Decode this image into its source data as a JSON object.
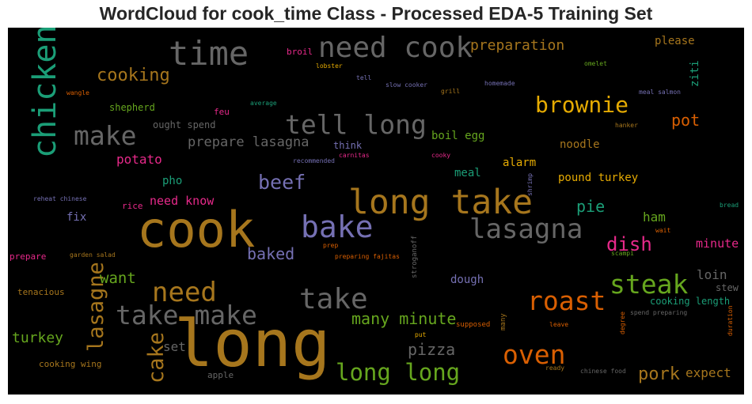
{
  "chart_data": {
    "type": "wordcloud",
    "title": "WordCloud for cook_time Class - Processed EDA-5 Training Set",
    "background": "#000000",
    "colormap": "Dark2",
    "words": [
      {
        "text": "long",
        "weight": 100,
        "color": "#a6761d"
      },
      {
        "text": "cook",
        "weight": 85,
        "color": "#a6761d"
      },
      {
        "text": "long take",
        "weight": 62,
        "color": "#a6761d"
      },
      {
        "text": "chicken",
        "weight": 60,
        "color": "#1b9e77"
      },
      {
        "text": "time",
        "weight": 58,
        "color": "#666666"
      },
      {
        "text": "bake",
        "weight": 52,
        "color": "#7570b3"
      },
      {
        "text": "need cook",
        "weight": 50,
        "color": "#666666"
      },
      {
        "text": "take",
        "weight": 50,
        "color": "#666666"
      },
      {
        "text": "lasagna",
        "weight": 47,
        "color": "#666666"
      },
      {
        "text": "need",
        "weight": 47,
        "color": "#a6761d"
      },
      {
        "text": "tell long",
        "weight": 46,
        "color": "#666666"
      },
      {
        "text": "take make",
        "weight": 45,
        "color": "#666666"
      },
      {
        "text": "steak",
        "weight": 45,
        "color": "#66a61e"
      },
      {
        "text": "make",
        "weight": 44,
        "color": "#666666"
      },
      {
        "text": "roast",
        "weight": 44,
        "color": "#d95f02"
      },
      {
        "text": "oven",
        "weight": 43,
        "color": "#d95f02"
      },
      {
        "text": "long long",
        "weight": 40,
        "color": "#66a61e"
      },
      {
        "text": "brownie",
        "weight": 38,
        "color": "#e6ab02"
      },
      {
        "text": "lasagne",
        "weight": 37,
        "color": "#a6761d"
      },
      {
        "text": "cake",
        "weight": 37,
        "color": "#a6761d"
      },
      {
        "text": "beef",
        "weight": 34,
        "color": "#7570b3"
      },
      {
        "text": "dish",
        "weight": 32,
        "color": "#e7298a"
      },
      {
        "text": "cooking",
        "weight": 30,
        "color": "#a6761d"
      },
      {
        "text": "pork",
        "weight": 30,
        "color": "#a6761d"
      },
      {
        "text": "many minute",
        "weight": 28,
        "color": "#66a61e"
      },
      {
        "text": "pizza",
        "weight": 28,
        "color": "#666666"
      },
      {
        "text": "baked",
        "weight": 27,
        "color": "#7570b3"
      },
      {
        "text": "want",
        "weight": 27,
        "color": "#66a61e"
      },
      {
        "text": "pot",
        "weight": 27,
        "color": "#d95f02"
      },
      {
        "text": "pie",
        "weight": 27,
        "color": "#1b9e77"
      },
      {
        "text": "turkey",
        "weight": 27,
        "color": "#66a61e"
      },
      {
        "text": "preparation",
        "weight": 26,
        "color": "#a6761d"
      },
      {
        "text": "expect",
        "weight": 26,
        "color": "#a6761d"
      },
      {
        "text": "prepare lasagna",
        "weight": 25,
        "color": "#666666"
      },
      {
        "text": "potato",
        "weight": 24,
        "color": "#e7298a"
      },
      {
        "text": "need know",
        "weight": 23,
        "color": "#e7298a"
      },
      {
        "text": "ham",
        "weight": 23,
        "color": "#66a61e"
      },
      {
        "text": "set",
        "weight": 23,
        "color": "#666666"
      },
      {
        "text": "loin",
        "weight": 22,
        "color": "#666666"
      },
      {
        "text": "minute",
        "weight": 22,
        "color": "#e7298a"
      },
      {
        "text": "boil egg",
        "weight": 22,
        "color": "#66a61e"
      },
      {
        "text": "pound turkey",
        "weight": 22,
        "color": "#e6ab02"
      },
      {
        "text": "noodle",
        "weight": 21,
        "color": "#a6761d"
      },
      {
        "text": "alarm",
        "weight": 21,
        "color": "#e6ab02"
      },
      {
        "text": "pho",
        "weight": 21,
        "color": "#1b9e77"
      },
      {
        "text": "fix",
        "weight": 21,
        "color": "#7570b3"
      },
      {
        "text": "dough",
        "weight": 20,
        "color": "#7570b3"
      },
      {
        "text": "meal",
        "weight": 20,
        "color": "#1b9e77"
      },
      {
        "text": "please",
        "weight": 20,
        "color": "#a6761d"
      },
      {
        "text": "ziti",
        "weight": 20,
        "color": "#1b9e77"
      },
      {
        "text": "stew",
        "weight": 18,
        "color": "#666666"
      },
      {
        "text": "cooking length",
        "weight": 18,
        "color": "#1b9e77"
      },
      {
        "text": "think",
        "weight": 18,
        "color": "#7570b3"
      },
      {
        "text": "shepherd",
        "weight": 17,
        "color": "#66a61e"
      },
      {
        "text": "ought spend",
        "weight": 17,
        "color": "#666666"
      },
      {
        "text": "rice",
        "weight": 16,
        "color": "#e7298a"
      },
      {
        "text": "feu",
        "weight": 16,
        "color": "#e7298a"
      },
      {
        "text": "prepare",
        "weight": 16,
        "color": "#e7298a"
      },
      {
        "text": "tenacious",
        "weight": 16,
        "color": "#a6761d"
      },
      {
        "text": "cooking wing",
        "weight": 16,
        "color": "#a6761d"
      },
      {
        "text": "apple",
        "weight": 16,
        "color": "#666666"
      },
      {
        "text": "broil",
        "weight": 16,
        "color": "#e7298a"
      },
      {
        "text": "supposed",
        "weight": 14,
        "color": "#d95f02"
      },
      {
        "text": "stroganoff",
        "weight": 14,
        "color": "#666666"
      },
      {
        "text": "many",
        "weight": 14,
        "color": "#a6761d"
      },
      {
        "text": "degree",
        "weight": 13,
        "color": "#d95f02"
      },
      {
        "text": "duration",
        "weight": 13,
        "color": "#d95f02"
      },
      {
        "text": "shrimp",
        "weight": 13,
        "color": "#7570b3"
      },
      {
        "text": "omelet",
        "weight": 13,
        "color": "#66a61e"
      },
      {
        "text": "lobster",
        "weight": 13,
        "color": "#e6ab02"
      },
      {
        "text": "tell",
        "weight": 13,
        "color": "#7570b3"
      },
      {
        "text": "slow cooker",
        "weight": 13,
        "color": "#7570b3"
      },
      {
        "text": "homemade",
        "weight": 13,
        "color": "#7570b3"
      },
      {
        "text": "grill",
        "weight": 13,
        "color": "#a6761d"
      },
      {
        "text": "wangle",
        "weight": 13,
        "color": "#d95f02"
      },
      {
        "text": "average",
        "weight": 13,
        "color": "#1b9e77"
      },
      {
        "text": "meal salmon",
        "weight": 13,
        "color": "#7570b3"
      },
      {
        "text": "hanker",
        "weight": 13,
        "color": "#a6761d"
      },
      {
        "text": "recommended",
        "weight": 13,
        "color": "#7570b3"
      },
      {
        "text": "carnitas",
        "weight": 13,
        "color": "#e7298a"
      },
      {
        "text": "cooky",
        "weight": 13,
        "color": "#e7298a"
      },
      {
        "text": "reheat chinese",
        "weight": 13,
        "color": "#7570b3"
      },
      {
        "text": "bread",
        "weight": 13,
        "color": "#1b9e77"
      },
      {
        "text": "wait",
        "weight": 13,
        "color": "#d95f02"
      },
      {
        "text": "garden salad",
        "weight": 13,
        "color": "#a6761d"
      },
      {
        "text": "prep",
        "weight": 13,
        "color": "#d95f02"
      },
      {
        "text": "preparing fajitas",
        "weight": 13,
        "color": "#d95f02"
      },
      {
        "text": "scampi",
        "weight": 13,
        "color": "#66a61e"
      },
      {
        "text": "spend preparing",
        "weight": 13,
        "color": "#666666"
      },
      {
        "text": "leave",
        "weight": 13,
        "color": "#d95f02"
      },
      {
        "text": "put",
        "weight": 13,
        "color": "#e6ab02"
      },
      {
        "text": "ready",
        "weight": 13,
        "color": "#a6761d"
      },
      {
        "text": "chinese food",
        "weight": 13,
        "color": "#666666"
      }
    ]
  }
}
